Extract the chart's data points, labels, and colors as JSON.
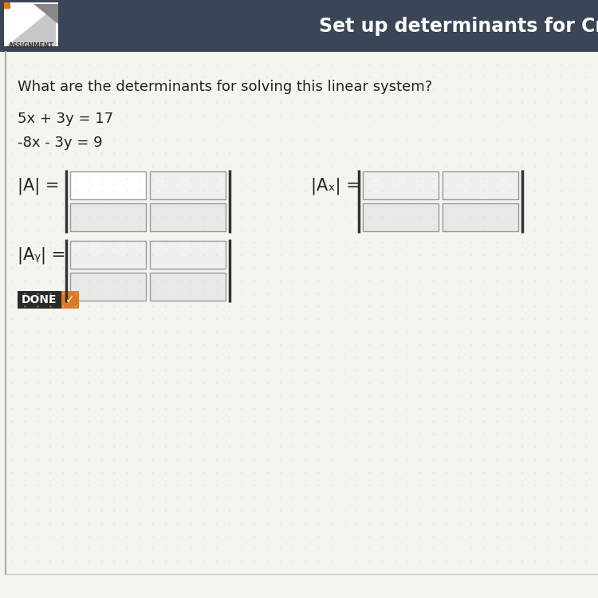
{
  "bg_color": "#f2f2ee",
  "header_bg": "#3a4555",
  "header_text": "Set up determinants for Cr",
  "header_text_color": "#ffffff",
  "header_fontsize": 17,
  "assignment_label": "ASSIGNMENT",
  "question_text": "What are the determinants for solving this linear system?",
  "equation1": "5x + 3y = 17",
  "equation2": "-8x - 3y = 9",
  "label_A": "|A| =",
  "label_Ax": "|Aₓ| =",
  "label_Ay": "|Aᵧ| =",
  "done_text": "DONE",
  "done_dark_bg": "#2a2a2a",
  "done_orange_bg": "#e07820",
  "done_text_color": "#ffffff",
  "box_fill": "#e8e8e4",
  "box_fill_light": "#f0f0ec",
  "box_border": "#999999",
  "top_left_box_fill": "#ffffff",
  "bracket_color": "#333333",
  "content_bg": "#f5f5f0",
  "separator_color": "#cccccc",
  "logo_bg": "#ffffff",
  "logo_tri1": "#c8c8c8",
  "logo_tri2": "#888888",
  "logo_orange": "#e07820"
}
